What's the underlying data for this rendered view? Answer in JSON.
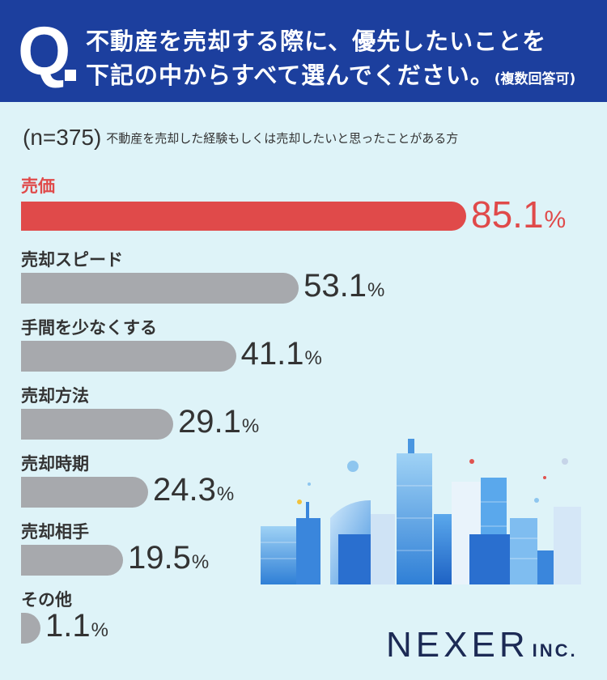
{
  "header": {
    "q_letter": "Q",
    "line1": "不動産を売却する際に、優先したいことを",
    "line2": "下記の中からすべて選んでください。",
    "note": "(複数回答可)"
  },
  "sample": {
    "n": "(n=375)",
    "description": "不動産を売却した経験もしくは売却したいと思ったことがある方"
  },
  "logo": {
    "main": "NEXER",
    "sub": "INC."
  },
  "colors": {
    "header_bg": "#1c3f9e",
    "background": "#def3f8",
    "highlight": "#e04a4a",
    "bar_default": "#a7a9ad"
  },
  "chart_data": {
    "type": "bar",
    "orientation": "horizontal",
    "unit": "%",
    "categories": [
      "売価",
      "売却スピード",
      "手間を少なくする",
      "売却方法",
      "売却時期",
      "売却相手",
      "その他"
    ],
    "values": [
      85.1,
      53.1,
      41.1,
      29.1,
      24.3,
      19.5,
      1.1
    ],
    "highlight_index": 0,
    "xlim": [
      0,
      100
    ]
  }
}
